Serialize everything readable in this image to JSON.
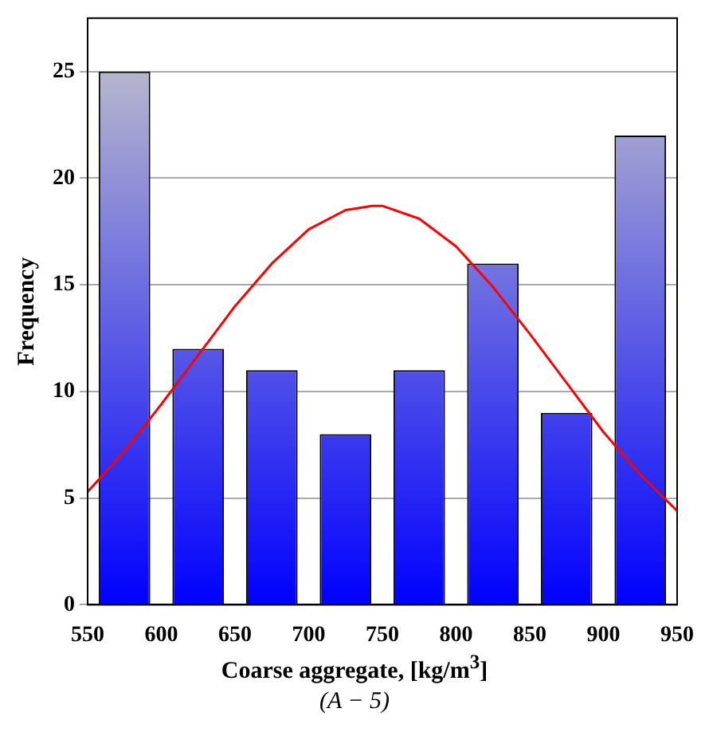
{
  "chart_data": {
    "type": "histogram",
    "xlabel": "Coarse aggregate, [kg/m$^{3}$]",
    "ylabel": "Frequency",
    "annotations": [
      "(A − 5)"
    ],
    "bins": [
      550,
      600,
      650,
      700,
      750,
      800,
      850,
      900,
      950
    ],
    "values": [
      25,
      12,
      11,
      8,
      11,
      16,
      9,
      22
    ],
    "color": "#0000ff",
    "series": [
      {
        "type": "line",
        "color": "#ff0000",
        "x": [
          550,
          575,
          600,
          625,
          650,
          675,
          700,
          725,
          743,
          750,
          775,
          800,
          825,
          850,
          875,
          900,
          925,
          950
        ],
        "values": [
          5.3,
          7.2,
          9.4,
          11.7,
          14,
          16,
          17.6,
          18.5,
          18.7,
          18.7,
          18.1,
          16.8,
          14.9,
          12.7,
          10.4,
          8.1,
          6.1,
          4.4
        ]
      }
    ],
    "xlim": [
      550,
      950
    ],
    "xticks": [
      550,
      600,
      650,
      700,
      750,
      800,
      850,
      900,
      950
    ],
    "ylim": [
      0,
      27.5
    ],
    "yticks": [
      0,
      5,
      10,
      15,
      20,
      25
    ],
    "grid": "y",
    "legend": false,
    "marker": "none",
    "line_style": "solid"
  }
}
